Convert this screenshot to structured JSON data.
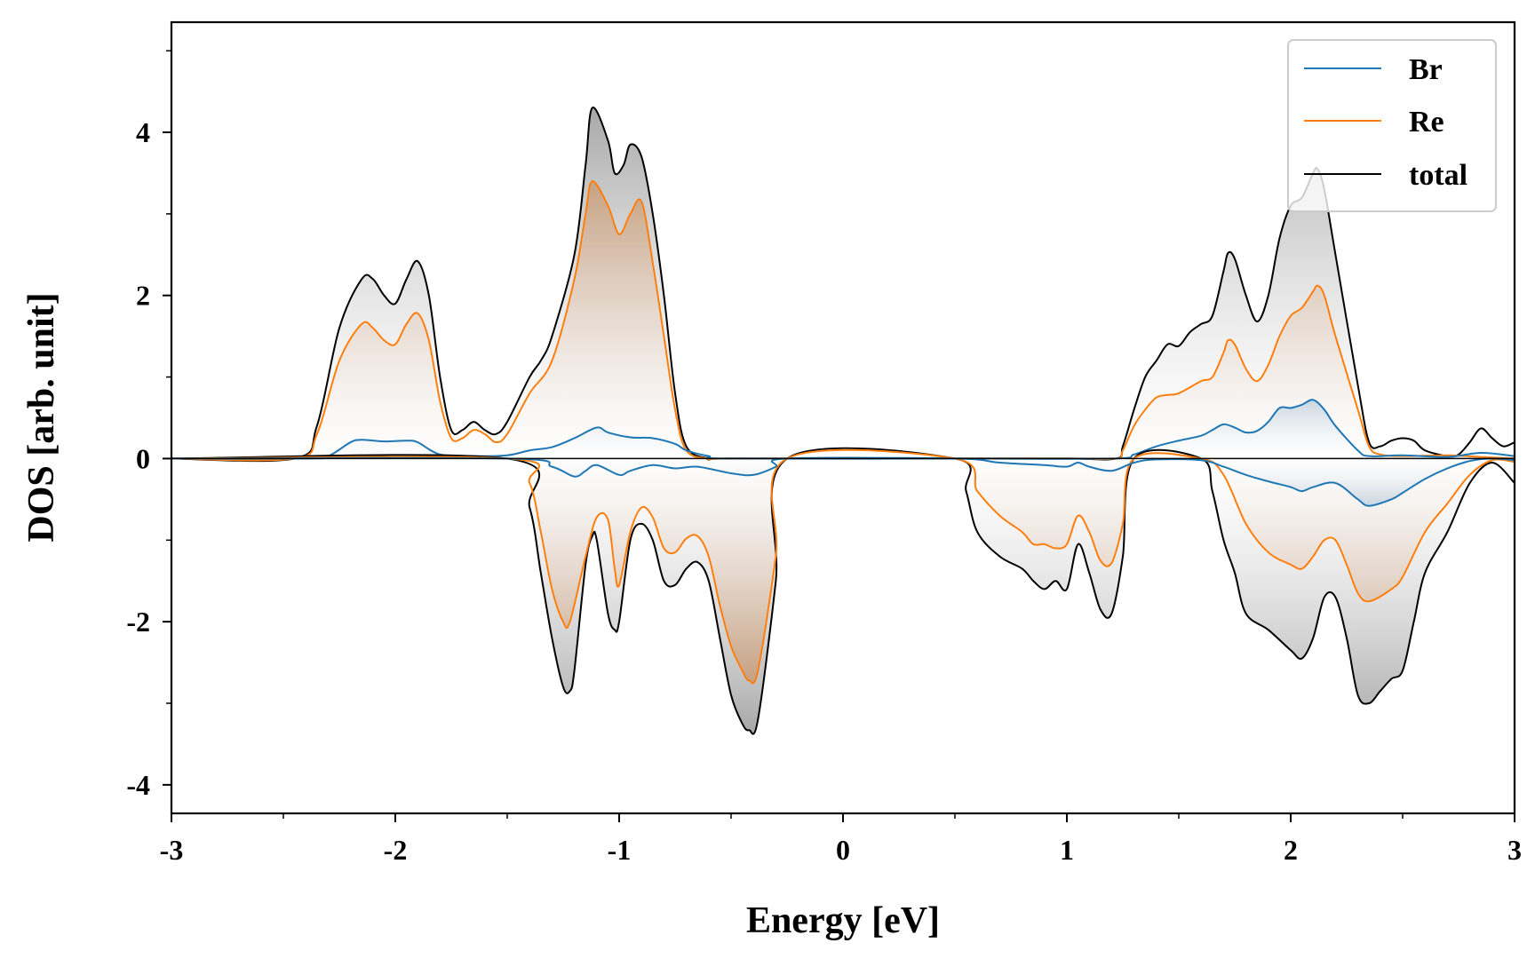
{
  "chart_data": {
    "type": "area",
    "xlabel": "Energy [eV]",
    "ylabel": "DOS [arb. unit]",
    "xlim": [
      -3,
      3
    ],
    "ylim": [
      -4.35,
      5.35
    ],
    "x_ticks": [
      -3,
      -2,
      -1,
      0,
      1,
      2,
      3
    ],
    "x_tick_labels": [
      "-3",
      "-2",
      "-1",
      "0",
      "1",
      "2",
      "3"
    ],
    "y_ticks": [
      -4,
      -2,
      0,
      2,
      4
    ],
    "y_tick_labels": [
      "-4",
      "-2",
      "0",
      "2",
      "4"
    ],
    "legend_position": "top-right",
    "grid": false,
    "spin_up": [
      {
        "name": "Br",
        "color": "#1f77b4",
        "fill": false,
        "x": [
          -3.0,
          -2.4,
          -2.3,
          -2.2,
          -2.15,
          -2.05,
          -1.95,
          -1.9,
          -1.8,
          -1.65,
          -1.5,
          -1.4,
          -1.3,
          -1.2,
          -1.1,
          -1.05,
          -0.95,
          -0.85,
          -0.75,
          -0.7,
          -0.6,
          -0.5,
          0.5,
          1.2,
          1.3,
          1.4,
          1.5,
          1.6,
          1.65,
          1.7,
          1.75,
          1.8,
          1.85,
          1.9,
          1.95,
          2.0,
          2.05,
          2.1,
          2.15,
          2.2,
          2.3,
          2.35,
          2.5,
          2.7,
          2.85,
          3.0
        ],
        "y": [
          0,
          0,
          0.03,
          0.2,
          0.23,
          0.21,
          0.22,
          0.2,
          0.05,
          0.03,
          0.04,
          0.1,
          0.14,
          0.25,
          0.38,
          0.32,
          0.26,
          0.25,
          0.18,
          0.1,
          0.03,
          0,
          0,
          0,
          0.05,
          0.15,
          0.22,
          0.28,
          0.35,
          0.42,
          0.38,
          0.32,
          0.34,
          0.45,
          0.62,
          0.62,
          0.66,
          0.72,
          0.6,
          0.4,
          0.1,
          0.03,
          0.04,
          0.02,
          0.07,
          0.03
        ]
      },
      {
        "name": "Re",
        "color": "#ff7f0e",
        "fill": true,
        "x": [
          -3.0,
          -2.45,
          -2.35,
          -2.25,
          -2.15,
          -2.1,
          -2.05,
          -2.0,
          -1.95,
          -1.9,
          -1.85,
          -1.8,
          -1.75,
          -1.7,
          -1.65,
          -1.6,
          -1.55,
          -1.5,
          -1.4,
          -1.3,
          -1.2,
          -1.15,
          -1.12,
          -1.05,
          -1.0,
          -0.95,
          -0.9,
          -0.85,
          -0.8,
          -0.75,
          -0.7,
          -0.6,
          -0.5,
          0.5,
          1.0,
          1.22,
          1.25,
          1.3,
          1.35,
          1.4,
          1.45,
          1.5,
          1.6,
          1.65,
          1.7,
          1.72,
          1.75,
          1.8,
          1.85,
          1.9,
          1.95,
          2.0,
          2.05,
          2.1,
          2.12,
          2.15,
          2.2,
          2.3,
          2.35,
          2.4,
          2.5,
          2.7,
          2.85,
          3.0
        ],
        "y": [
          0,
          0,
          0.3,
          1.2,
          1.65,
          1.6,
          1.45,
          1.4,
          1.65,
          1.78,
          1.45,
          0.7,
          0.25,
          0.25,
          0.35,
          0.3,
          0.2,
          0.3,
          0.8,
          1.2,
          2.2,
          3.0,
          3.4,
          3.1,
          2.75,
          3.0,
          3.15,
          2.4,
          1.5,
          0.6,
          0.1,
          0,
          0,
          0,
          0,
          0,
          0.1,
          0.4,
          0.6,
          0.75,
          0.78,
          0.8,
          0.95,
          1.0,
          1.3,
          1.45,
          1.4,
          1.1,
          0.95,
          1.15,
          1.5,
          1.75,
          1.85,
          2.05,
          2.12,
          2.0,
          1.5,
          0.6,
          0.15,
          0.05,
          0.03,
          0.04,
          0.02,
          0.0
        ]
      },
      {
        "name": "total",
        "color": "#000000",
        "fill": true,
        "x": [
          -3.0,
          -2.45,
          -2.35,
          -2.25,
          -2.15,
          -2.1,
          -2.05,
          -2.0,
          -1.95,
          -1.9,
          -1.85,
          -1.8,
          -1.75,
          -1.7,
          -1.65,
          -1.6,
          -1.55,
          -1.5,
          -1.4,
          -1.35,
          -1.3,
          -1.2,
          -1.15,
          -1.12,
          -1.05,
          -1.02,
          -0.98,
          -0.95,
          -0.9,
          -0.85,
          -0.8,
          -0.75,
          -0.7,
          -0.6,
          -0.5,
          0.5,
          1.0,
          1.22,
          1.25,
          1.3,
          1.35,
          1.4,
          1.45,
          1.5,
          1.55,
          1.6,
          1.65,
          1.7,
          1.72,
          1.75,
          1.8,
          1.85,
          1.9,
          1.95,
          2.0,
          2.05,
          2.1,
          2.12,
          2.15,
          2.2,
          2.3,
          2.35,
          2.4,
          2.45,
          2.5,
          2.55,
          2.6,
          2.7,
          2.75,
          2.8,
          2.85,
          2.9,
          2.95,
          3.0
        ],
        "y": [
          0,
          0,
          0.4,
          1.6,
          2.2,
          2.2,
          2.0,
          1.9,
          2.2,
          2.42,
          2.0,
          1.0,
          0.35,
          0.35,
          0.45,
          0.35,
          0.3,
          0.45,
          1.0,
          1.2,
          1.5,
          2.5,
          3.6,
          4.3,
          3.9,
          3.5,
          3.6,
          3.85,
          3.7,
          3.0,
          2.0,
          0.8,
          0.15,
          0,
          0,
          0,
          0,
          0,
          0.15,
          0.6,
          1.0,
          1.2,
          1.4,
          1.38,
          1.55,
          1.65,
          1.75,
          2.3,
          2.52,
          2.45,
          2.0,
          1.68,
          2.0,
          2.7,
          3.1,
          3.2,
          3.5,
          3.55,
          3.3,
          2.5,
          0.9,
          0.2,
          0.15,
          0.22,
          0.25,
          0.22,
          0.1,
          0.03,
          0.05,
          0.2,
          0.37,
          0.25,
          0.15,
          0.2
        ]
      }
    ],
    "spin_down": [
      {
        "name": "Br",
        "color": "#1f77b4",
        "fill": false,
        "x": [
          -3.0,
          -1.5,
          -1.3,
          -1.2,
          -1.15,
          -1.1,
          -1.0,
          -0.95,
          -0.85,
          -0.75,
          -0.65,
          -0.5,
          -0.4,
          -0.3,
          -0.25,
          0.5,
          0.7,
          0.9,
          1.0,
          1.05,
          1.1,
          1.2,
          1.3,
          1.4,
          1.6,
          1.7,
          1.8,
          1.9,
          2.0,
          2.05,
          2.1,
          2.2,
          2.3,
          2.35,
          2.45,
          2.5,
          2.6,
          2.7,
          2.8,
          2.9,
          3.0
        ],
        "y": [
          0,
          0,
          -0.1,
          -0.22,
          -0.15,
          -0.08,
          -0.2,
          -0.15,
          -0.08,
          -0.12,
          -0.1,
          -0.18,
          -0.2,
          -0.1,
          0,
          0,
          -0.05,
          -0.08,
          -0.1,
          -0.05,
          -0.1,
          -0.15,
          -0.05,
          -0.01,
          -0.02,
          -0.1,
          -0.2,
          -0.28,
          -0.35,
          -0.4,
          -0.35,
          -0.3,
          -0.5,
          -0.58,
          -0.5,
          -0.42,
          -0.25,
          -0.12,
          -0.03,
          0.0,
          -0.02
        ]
      },
      {
        "name": "Re",
        "color": "#ff7f0e",
        "fill": true,
        "x": [
          -3.0,
          -1.5,
          -1.4,
          -1.35,
          -1.3,
          -1.25,
          -1.22,
          -1.15,
          -1.1,
          -1.05,
          -1.02,
          -1.0,
          -0.95,
          -0.9,
          -0.85,
          -0.8,
          -0.75,
          -0.7,
          -0.65,
          -0.6,
          -0.55,
          -0.5,
          -0.45,
          -0.42,
          -0.38,
          -0.3,
          -0.25,
          0.5,
          0.6,
          0.7,
          0.8,
          0.85,
          0.9,
          0.95,
          1.0,
          1.05,
          1.1,
          1.15,
          1.2,
          1.25,
          1.3,
          1.6,
          1.7,
          1.8,
          1.9,
          2.0,
          2.05,
          2.1,
          2.15,
          2.2,
          2.25,
          2.3,
          2.35,
          2.45,
          2.5,
          2.6,
          2.7,
          2.8,
          2.9,
          3.0
        ],
        "y": [
          0,
          0,
          -0.3,
          -0.9,
          -1.6,
          -2.0,
          -2.0,
          -1.2,
          -0.72,
          -0.75,
          -1.35,
          -1.55,
          -0.9,
          -0.6,
          -0.72,
          -1.1,
          -1.15,
          -0.98,
          -0.95,
          -1.2,
          -1.8,
          -2.3,
          -2.6,
          -2.72,
          -2.6,
          -1.2,
          0,
          0,
          -0.4,
          -0.7,
          -0.9,
          -1.05,
          -1.05,
          -1.1,
          -1.05,
          -0.7,
          -0.9,
          -1.25,
          -1.28,
          -0.8,
          0,
          0,
          -0.2,
          -0.8,
          -1.15,
          -1.3,
          -1.35,
          -1.2,
          -1.0,
          -1.0,
          -1.3,
          -1.65,
          -1.75,
          -1.6,
          -1.45,
          -0.9,
          -0.55,
          -0.2,
          -0.02,
          -0.04
        ]
      },
      {
        "name": "total",
        "color": "#000000",
        "fill": true,
        "x": [
          -3.0,
          -1.5,
          -1.4,
          -1.35,
          -1.3,
          -1.25,
          -1.22,
          -1.2,
          -1.15,
          -1.12,
          -1.1,
          -1.05,
          -1.02,
          -1.0,
          -0.95,
          -0.9,
          -0.85,
          -0.8,
          -0.75,
          -0.7,
          -0.65,
          -0.6,
          -0.55,
          -0.5,
          -0.45,
          -0.42,
          -0.38,
          -0.3,
          -0.25,
          0.5,
          0.55,
          0.6,
          0.7,
          0.8,
          0.85,
          0.9,
          0.95,
          1.0,
          1.05,
          1.1,
          1.15,
          1.2,
          1.25,
          1.3,
          1.6,
          1.65,
          1.7,
          1.75,
          1.8,
          1.9,
          2.0,
          2.05,
          2.1,
          2.15,
          2.2,
          2.25,
          2.3,
          2.35,
          2.4,
          2.45,
          2.5,
          2.55,
          2.6,
          2.7,
          2.8,
          2.9,
          3.0
        ],
        "y": [
          0,
          0,
          -0.6,
          -1.4,
          -2.2,
          -2.8,
          -2.85,
          -2.6,
          -1.3,
          -0.95,
          -1.0,
          -1.9,
          -2.1,
          -2.0,
          -1.0,
          -0.8,
          -1.0,
          -1.5,
          -1.55,
          -1.35,
          -1.27,
          -1.5,
          -2.2,
          -2.9,
          -3.25,
          -3.33,
          -3.2,
          -1.5,
          0,
          0,
          -0.4,
          -0.9,
          -1.2,
          -1.35,
          -1.5,
          -1.6,
          -1.5,
          -1.6,
          -1.05,
          -1.4,
          -1.85,
          -1.9,
          -1.2,
          0,
          0,
          -0.4,
          -1.0,
          -1.4,
          -1.9,
          -2.1,
          -2.35,
          -2.45,
          -2.2,
          -1.7,
          -1.7,
          -2.2,
          -2.9,
          -3.0,
          -2.85,
          -2.7,
          -2.6,
          -2.0,
          -1.4,
          -0.9,
          -0.3,
          -0.05,
          -0.3
        ]
      }
    ]
  }
}
